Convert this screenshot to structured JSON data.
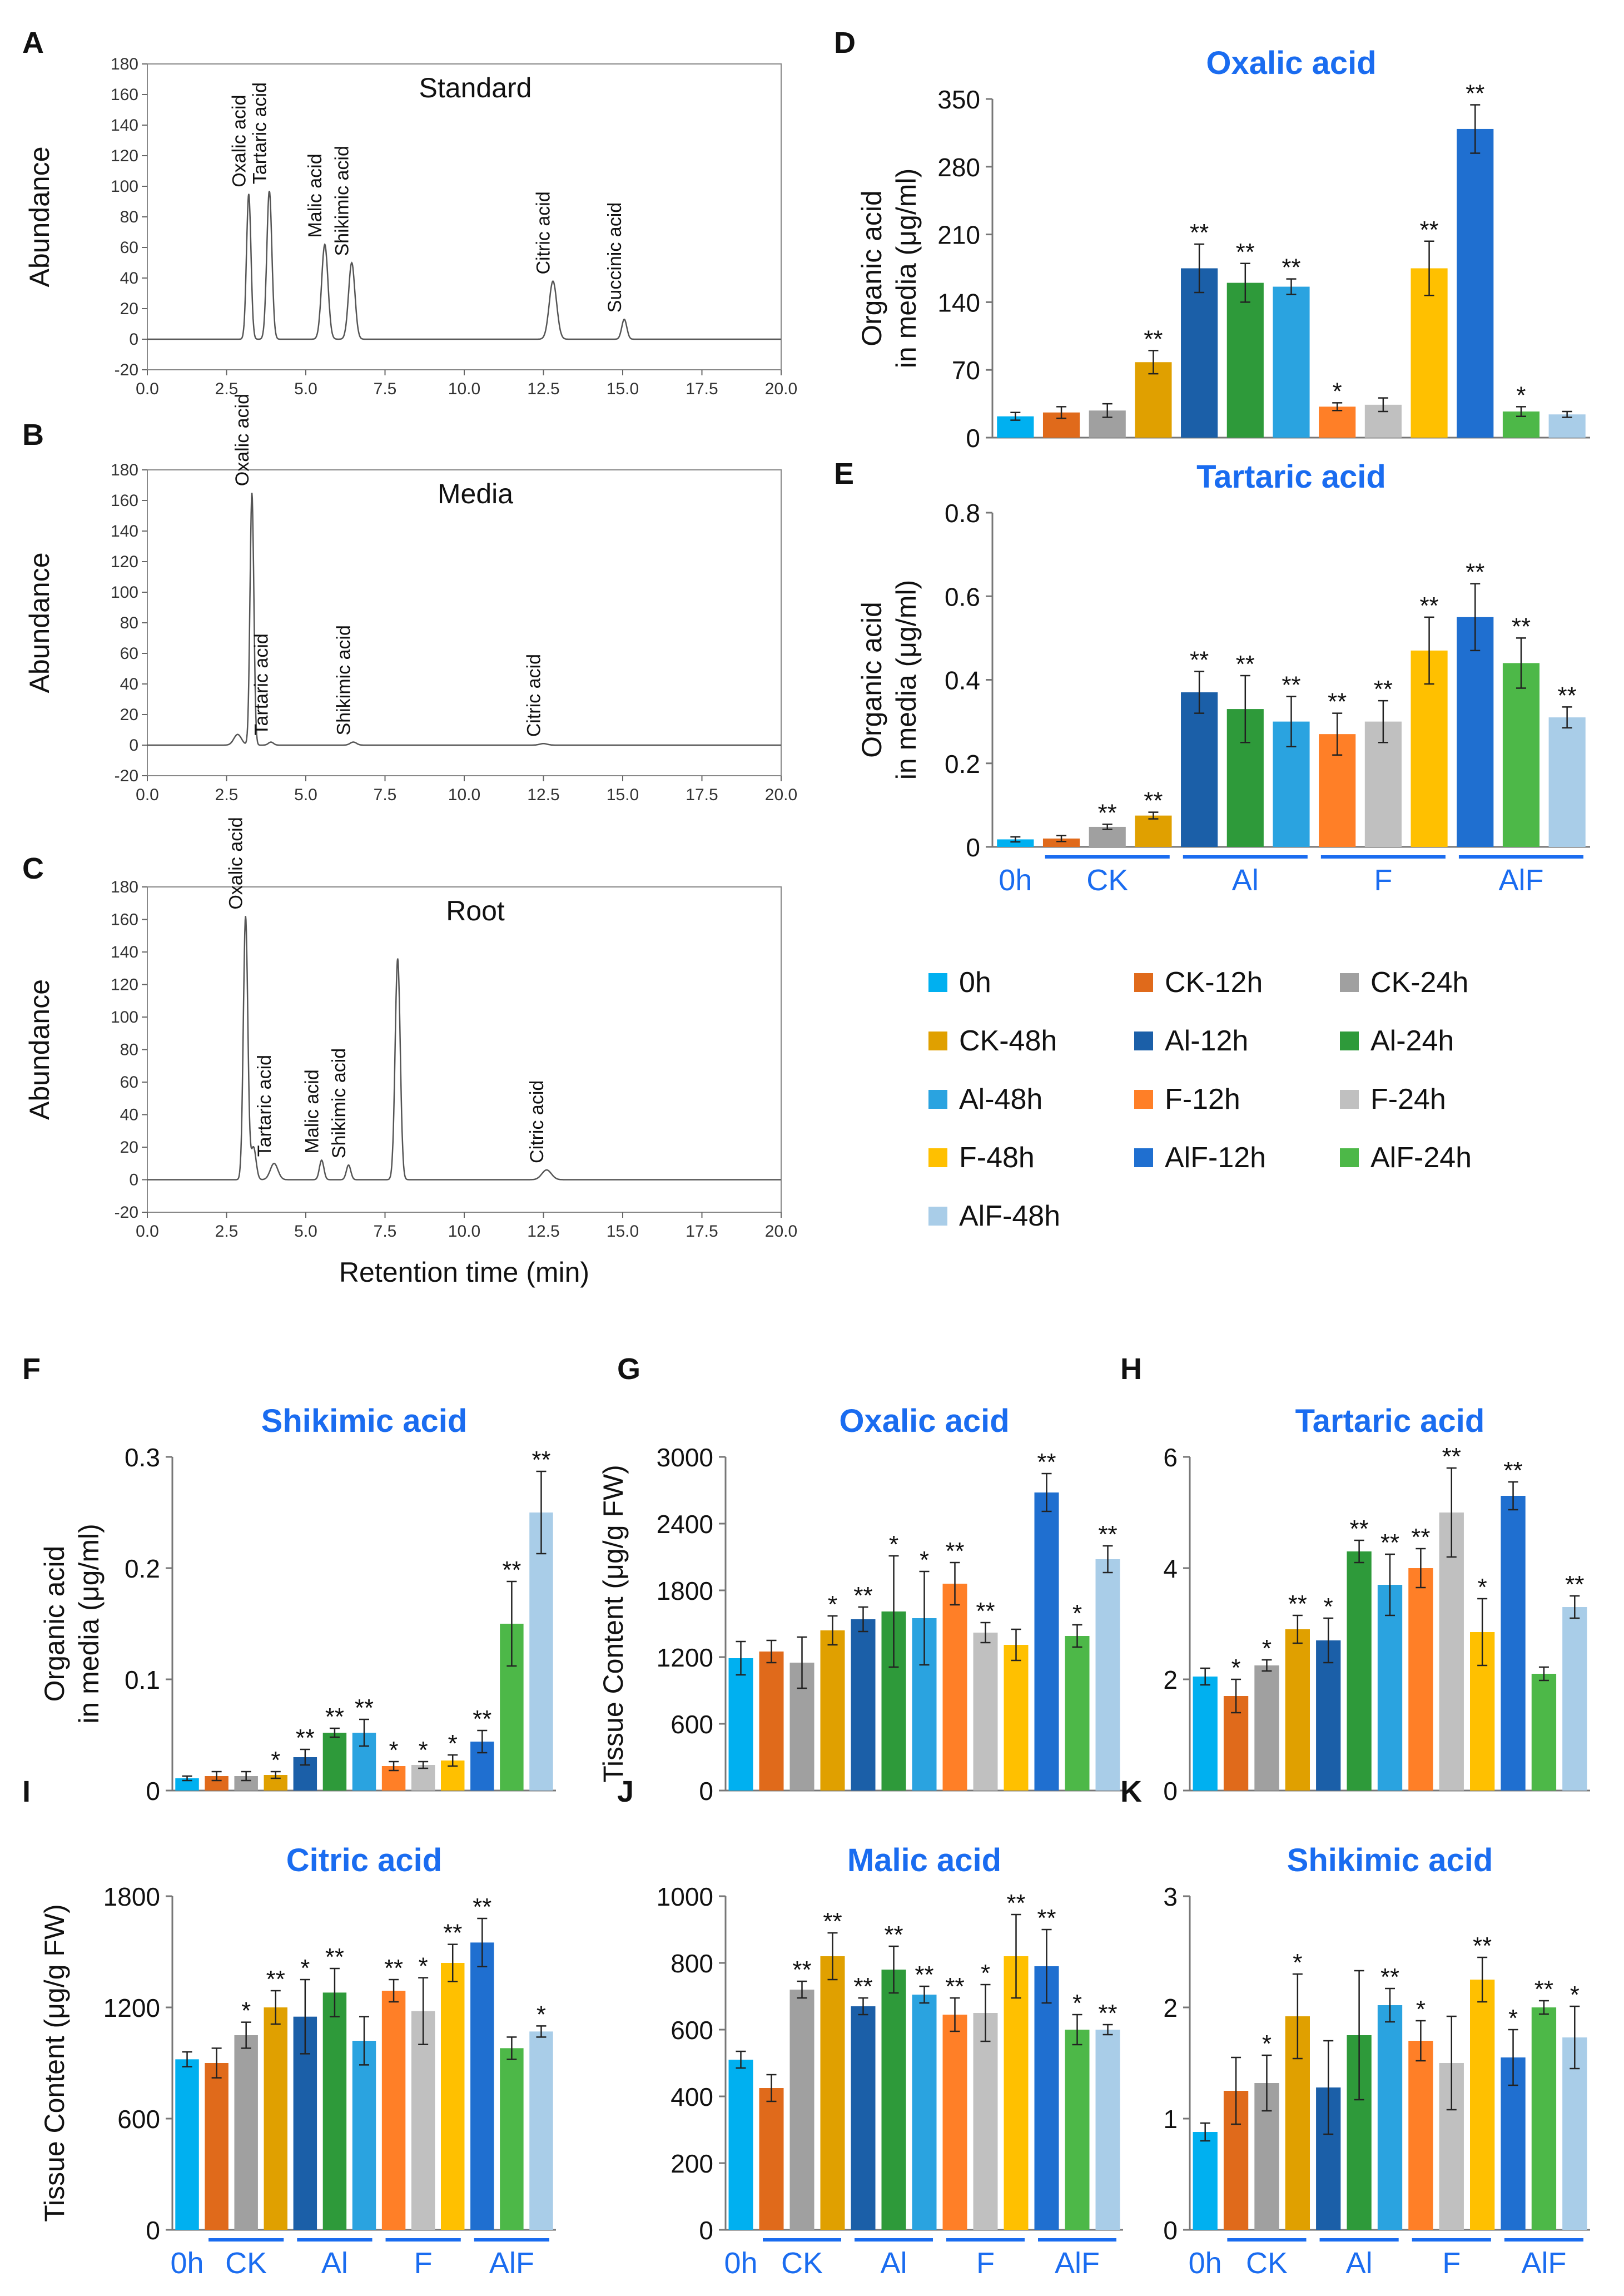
{
  "panel_labels": [
    "A",
    "B",
    "C",
    "D",
    "E",
    "F",
    "G",
    "H",
    "I",
    "J",
    "K"
  ],
  "legend": {
    "items": [
      {
        "label": "0h",
        "color": "#00b0f0"
      },
      {
        "label": "CK-12h",
        "color": "#e06a1b"
      },
      {
        "label": "CK-24h",
        "color": "#a0a0a0"
      },
      {
        "label": "CK-48h",
        "color": "#e0a000"
      },
      {
        "label": "Al-12h",
        "color": "#1b5fa8"
      },
      {
        "label": "Al-24h",
        "color": "#2e9a3a"
      },
      {
        "label": "Al-48h",
        "color": "#2aa3e0"
      },
      {
        "label": "F-12h",
        "color": "#ff7f27"
      },
      {
        "label": "F-24h",
        "color": "#c0c0c0"
      },
      {
        "label": "F-48h",
        "color": "#ffc000"
      },
      {
        "label": "AlF-12h",
        "color": "#1f6fd0"
      },
      {
        "label": "AlF-24h",
        "color": "#4db848"
      },
      {
        "label": "AlF-48h",
        "color": "#a9cde8"
      }
    ]
  },
  "group_labels": [
    "0h",
    "CK",
    "Al",
    "F",
    "AlF"
  ],
  "chart_data": [
    {
      "id": "A",
      "type": "line",
      "title": "Standard",
      "ylabel": "Abundance",
      "xlabel": "",
      "xlim": [
        0,
        20
      ],
      "ylim": [
        -20,
        180
      ],
      "xticks": [
        "0.0",
        "2.5",
        "5.0",
        "7.5",
        "10.0",
        "12.5",
        "15.0",
        "17.5",
        "20.0"
      ],
      "yticks": [
        "-20",
        "0",
        "20",
        "40",
        "60",
        "80",
        "100",
        "120",
        "140",
        "160",
        "180"
      ],
      "peaks": [
        {
          "x": 3.2,
          "y": 95,
          "w": 0.07,
          "label": "Oxalic acid"
        },
        {
          "x": 3.85,
          "y": 97,
          "w": 0.08,
          "label": "Tartaric acid"
        },
        {
          "x": 5.6,
          "y": 62,
          "w": 0.1,
          "label": "Malic acid"
        },
        {
          "x": 6.45,
          "y": 50,
          "w": 0.1,
          "label": "Shikimic acid"
        },
        {
          "x": 12.8,
          "y": 38,
          "w": 0.12,
          "label": "Citric acid"
        },
        {
          "x": 15.05,
          "y": 13,
          "w": 0.08,
          "label": "Succinic acid"
        }
      ]
    },
    {
      "id": "B",
      "type": "line",
      "title": "Media",
      "ylabel": "Abundance",
      "xlabel": "",
      "xlim": [
        0,
        20
      ],
      "ylim": [
        -20,
        180
      ],
      "xticks": [
        "0.0",
        "2.5",
        "5.0",
        "7.5",
        "10.0",
        "12.5",
        "15.0",
        "17.5",
        "20.0"
      ],
      "yticks": [
        "-20",
        "0",
        "20",
        "40",
        "60",
        "80",
        "100",
        "120",
        "140",
        "160",
        "180"
      ],
      "peaks": [
        {
          "x": 2.85,
          "y": 7,
          "w": 0.12,
          "label": ""
        },
        {
          "x": 3.3,
          "y": 165,
          "w": 0.06,
          "label": "Oxalic acid"
        },
        {
          "x": 3.9,
          "y": 2,
          "w": 0.08,
          "label": "Tartaric acid"
        },
        {
          "x": 6.5,
          "y": 2,
          "w": 0.1,
          "label": "Shikimic acid"
        },
        {
          "x": 12.5,
          "y": 1,
          "w": 0.12,
          "label": "Citric acid"
        }
      ]
    },
    {
      "id": "C",
      "type": "line",
      "title": "Root",
      "ylabel": "Abundance",
      "xlabel": "Retention time (min)",
      "xlim": [
        0,
        20
      ],
      "ylim": [
        -20,
        180
      ],
      "xticks": [
        "0.0",
        "2.5",
        "5.0",
        "7.5",
        "10.0",
        "12.5",
        "15.0",
        "17.5",
        "20.0"
      ],
      "yticks": [
        "-20",
        "0",
        "20",
        "40",
        "60",
        "80",
        "100",
        "120",
        "140",
        "160",
        "180"
      ],
      "peaks": [
        {
          "x": 3.1,
          "y": 162,
          "w": 0.07,
          "label": "Oxalic acid"
        },
        {
          "x": 3.35,
          "y": 20,
          "w": 0.08,
          "label": ""
        },
        {
          "x": 4.0,
          "y": 10,
          "w": 0.12,
          "label": "Tartaric acid"
        },
        {
          "x": 5.5,
          "y": 12,
          "w": 0.07,
          "label": "Malic acid"
        },
        {
          "x": 6.35,
          "y": 9,
          "w": 0.07,
          "label": "Shikimic acid"
        },
        {
          "x": 7.9,
          "y": 136,
          "w": 0.08,
          "label": ""
        },
        {
          "x": 12.6,
          "y": 6,
          "w": 0.15,
          "label": "Citric acid"
        }
      ]
    },
    {
      "id": "D",
      "type": "bar",
      "title": "Oxalic acid",
      "ylabel": "Organic acid\nin media (μg/ml)",
      "ylim": [
        0,
        350
      ],
      "yticks": [
        "0",
        "70",
        "140",
        "210",
        "280",
        "350"
      ],
      "show_groups": false,
      "values": [
        22,
        26,
        28,
        78,
        175,
        160,
        156,
        32,
        34,
        175,
        319,
        27,
        24
      ],
      "errors": [
        4,
        6,
        7,
        12,
        25,
        20,
        8,
        4,
        7,
        28,
        25,
        5,
        3
      ],
      "sig": [
        "",
        "",
        "",
        "**",
        "**",
        "**",
        "**",
        "*",
        "",
        "**",
        "**",
        "*",
        ""
      ]
    },
    {
      "id": "E",
      "type": "bar",
      "title": "Tartaric acid",
      "ylabel": "Organic acid\nin media (μg/ml)",
      "ylim": [
        0,
        0.8
      ],
      "yticks": [
        "0",
        "0.2",
        "0.4",
        "0.6",
        "0.8"
      ],
      "show_groups": true,
      "values": [
        0.018,
        0.02,
        0.048,
        0.075,
        0.37,
        0.33,
        0.3,
        0.27,
        0.3,
        0.47,
        0.55,
        0.44,
        0.31
      ],
      "errors": [
        0.006,
        0.007,
        0.006,
        0.008,
        0.05,
        0.08,
        0.06,
        0.05,
        0.05,
        0.08,
        0.08,
        0.06,
        0.025
      ],
      "sig": [
        "",
        "",
        "**",
        "**",
        "**",
        "**",
        "**",
        "**",
        "**",
        "**",
        "**",
        "**",
        "**"
      ]
    },
    {
      "id": "F",
      "type": "bar",
      "title": "Shikimic acid",
      "ylabel": "Organic acid\nin media (μg/ml)",
      "ylim": [
        0,
        0.3
      ],
      "yticks": [
        "0",
        "0.1",
        "0.2",
        "0.3"
      ],
      "show_groups": false,
      "values": [
        0.011,
        0.013,
        0.013,
        0.014,
        0.03,
        0.052,
        0.052,
        0.022,
        0.023,
        0.027,
        0.044,
        0.15,
        0.25
      ],
      "errors": [
        0.002,
        0.004,
        0.004,
        0.003,
        0.007,
        0.004,
        0.012,
        0.004,
        0.003,
        0.005,
        0.01,
        0.038,
        0.037
      ],
      "sig": [
        "",
        "",
        "",
        "*",
        "**",
        "**",
        "**",
        "*",
        "*",
        "*",
        "**",
        "**",
        "**"
      ]
    },
    {
      "id": "G",
      "type": "bar",
      "title": "Oxalic acid",
      "ylabel": "Tissue Content (μg/g FW)",
      "ylim": [
        0,
        3000
      ],
      "yticks": [
        "0",
        "600",
        "1200",
        "1800",
        "2400",
        "3000"
      ],
      "show_groups": false,
      "values": [
        1190,
        1250,
        1150,
        1440,
        1540,
        1610,
        1550,
        1860,
        1420,
        1310,
        2680,
        1390,
        2080
      ],
      "errors": [
        150,
        100,
        230,
        130,
        110,
        500,
        420,
        190,
        90,
        140,
        170,
        100,
        120
      ],
      "sig": [
        "",
        "",
        "",
        "*",
        "**",
        "*",
        "*",
        "**",
        "**",
        "",
        "**",
        "*",
        "**"
      ]
    },
    {
      "id": "H",
      "type": "bar",
      "title": "Tartaric acid",
      "ylabel": "",
      "ylim": [
        0,
        6
      ],
      "yticks": [
        "0",
        "2",
        "4",
        "6"
      ],
      "show_groups": false,
      "values": [
        2.05,
        1.7,
        2.25,
        2.9,
        2.7,
        4.3,
        3.7,
        4.0,
        5.0,
        2.85,
        5.3,
        2.1,
        3.3
      ],
      "errors": [
        0.15,
        0.3,
        0.1,
        0.25,
        0.4,
        0.2,
        0.55,
        0.35,
        0.8,
        0.6,
        0.25,
        0.12,
        0.2
      ],
      "sig": [
        "",
        "*",
        "*",
        "**",
        "*",
        "**",
        "**",
        "**",
        "**",
        "*",
        "**",
        "",
        "**"
      ]
    },
    {
      "id": "I",
      "type": "bar",
      "title": "Citric acid",
      "ylabel": "Tissue Content (μg/g FW)",
      "ylim": [
        0,
        1800
      ],
      "yticks": [
        "0",
        "600",
        "1200",
        "1800"
      ],
      "show_groups": true,
      "values": [
        920,
        900,
        1050,
        1200,
        1150,
        1280,
        1020,
        1290,
        1180,
        1440,
        1550,
        980,
        1070
      ],
      "errors": [
        40,
        80,
        70,
        90,
        200,
        130,
        130,
        60,
        180,
        100,
        130,
        60,
        30
      ],
      "sig": [
        "",
        "",
        "*",
        "**",
        "*",
        "**",
        "",
        "**",
        "*",
        "**",
        "**",
        "",
        "*"
      ]
    },
    {
      "id": "J",
      "type": "bar",
      "title": "Malic acid",
      "ylabel": "",
      "ylim": [
        0,
        1000
      ],
      "yticks": [
        "0",
        "200",
        "400",
        "600",
        "800",
        "1000"
      ],
      "show_groups": true,
      "values": [
        510,
        425,
        720,
        820,
        670,
        780,
        705,
        645,
        650,
        820,
        790,
        600,
        600
      ],
      "errors": [
        25,
        40,
        25,
        70,
        25,
        70,
        25,
        50,
        85,
        125,
        110,
        45,
        15
      ],
      "sig": [
        "",
        "",
        "**",
        "**",
        "**",
        "**",
        "**",
        "**",
        "*",
        "**",
        "**",
        "*",
        "**"
      ]
    },
    {
      "id": "K",
      "type": "bar",
      "title": "Shikimic acid",
      "ylabel": "",
      "ylim": [
        0,
        3
      ],
      "yticks": [
        "0",
        "1",
        "2",
        "3"
      ],
      "show_groups": true,
      "values": [
        0.88,
        1.25,
        1.32,
        1.92,
        1.28,
        1.75,
        2.02,
        1.7,
        1.5,
        2.25,
        1.55,
        2.0,
        1.73
      ],
      "errors": [
        0.08,
        0.3,
        0.25,
        0.38,
        0.42,
        0.58,
        0.15,
        0.18,
        0.42,
        0.2,
        0.25,
        0.06,
        0.28
      ],
      "sig": [
        "",
        "",
        "*",
        "*",
        "",
        "",
        "**",
        "*",
        "",
        "**",
        "*",
        "**",
        "*"
      ]
    }
  ]
}
